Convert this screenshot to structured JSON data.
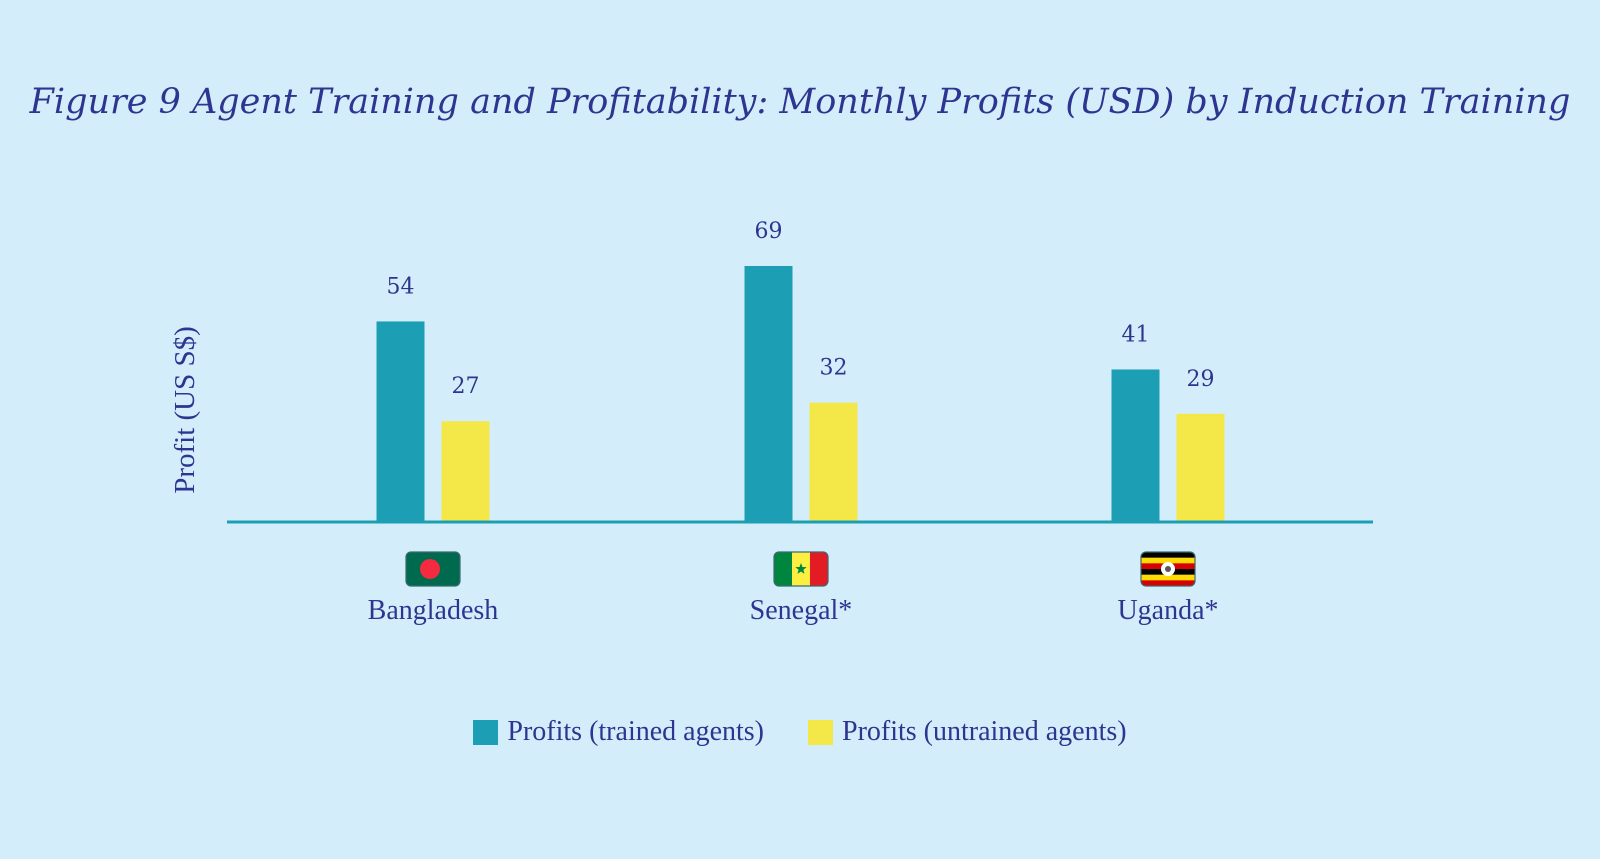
{
  "chart_data": {
    "type": "bar",
    "title": "Figure 9 Agent Training and Profitability: Monthly Profits (USD) by Induction Training",
    "ylabel": "Profit (US S$)",
    "xlabel": "",
    "categories": [
      "Bangladesh",
      "Senegal*",
      "Uganda*"
    ],
    "flags": [
      "bangladesh-flag-icon",
      "senegal-flag-icon",
      "uganda-flag-icon"
    ],
    "series": [
      {
        "name": "Profits (trained agents)",
        "values": [
          54,
          69,
          41
        ],
        "color": "#1c9fb4"
      },
      {
        "name": "Profits (untrained agents)",
        "values": [
          27,
          32,
          29
        ],
        "color": "#f4e748"
      }
    ],
    "ylim": [
      0,
      69
    ],
    "grid": false,
    "data_labels": true,
    "legend_position": "bottom-center",
    "colors": {
      "background": "#d3eefa",
      "text": "#2e3590",
      "axis": "#1c9fb4"
    }
  }
}
